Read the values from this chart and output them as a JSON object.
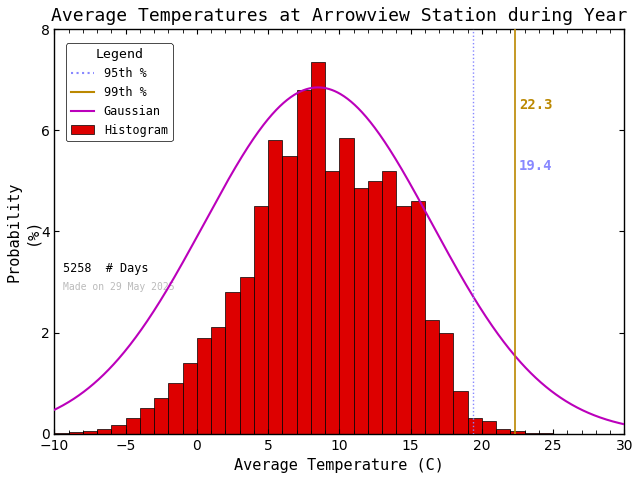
{
  "title": "Average Temperatures at Arrowview Station during Year",
  "xlabel": "Average Temperature (C)",
  "ylabel": "Probability\n(%)",
  "xlim": [
    -10,
    30
  ],
  "ylim": [
    0,
    8
  ],
  "yticks": [
    0,
    2,
    4,
    6,
    8
  ],
  "xticks": [
    -10,
    -5,
    0,
    5,
    10,
    15,
    20,
    25,
    30
  ],
  "mean": 8.5,
  "std": 8.0,
  "gauss_peak": 6.85,
  "n_days": 5258,
  "pct95": 19.4,
  "pct99": 22.3,
  "hist_color": "#dd0000",
  "hist_edgecolor": "#000000",
  "gauss_color": "#bb00bb",
  "pct95_color": "#8888ff",
  "pct99_color": "#bb8800",
  "pct95_label": "95th %",
  "pct99_label": "99th %",
  "gauss_label": "Gaussian",
  "hist_label": "Histogram",
  "days_label": "# Days",
  "legend_title": "Legend",
  "watermark": "Made on 29 May 2025",
  "watermark_color": "#bbbbbb",
  "bin_centers": [
    -9.5,
    -8.5,
    -7.5,
    -6.5,
    -5.5,
    -4.5,
    -3.5,
    -2.5,
    -1.5,
    -0.5,
    0.5,
    1.5,
    2.5,
    3.5,
    4.5,
    5.5,
    6.5,
    7.5,
    8.5,
    9.5,
    10.5,
    11.5,
    12.5,
    13.5,
    14.5,
    15.5,
    16.5,
    17.5,
    18.5,
    19.5,
    20.5,
    21.5,
    22.5,
    23.5,
    24.5,
    25.5,
    26.5,
    27.5,
    28.5,
    29.5
  ],
  "bin_probs": [
    0.02,
    0.04,
    0.06,
    0.1,
    0.18,
    0.3,
    0.5,
    0.7,
    1.0,
    1.4,
    1.9,
    2.1,
    2.8,
    3.1,
    4.5,
    5.8,
    5.5,
    6.8,
    7.35,
    5.2,
    5.85,
    4.85,
    5.0,
    5.2,
    4.5,
    4.6,
    2.25,
    2.0,
    0.85,
    0.3,
    0.25,
    0.1,
    0.05,
    0.02,
    0.01,
    0.0,
    0.0,
    0.0,
    0.0,
    0.0
  ],
  "background_color": "#ffffff",
  "title_fontsize": 13,
  "label_fontsize": 11,
  "tick_fontsize": 10
}
